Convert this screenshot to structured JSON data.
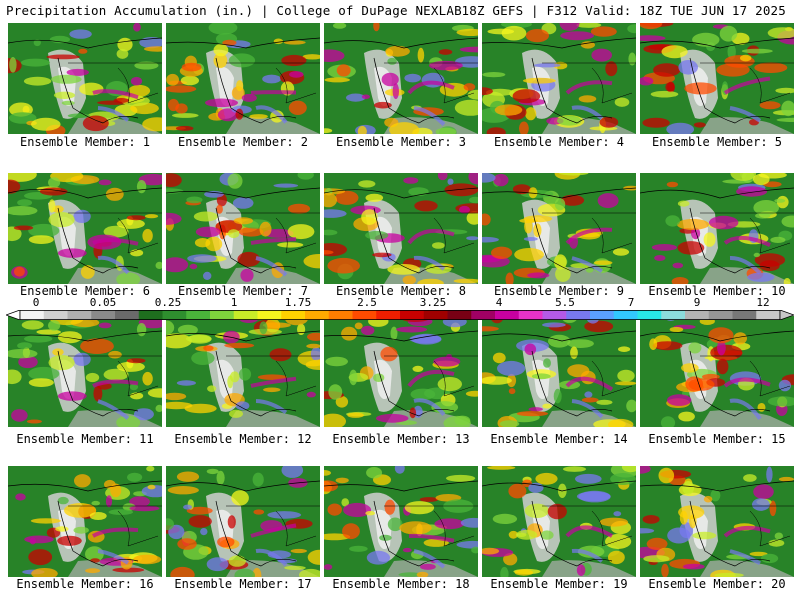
{
  "header": {
    "left": "Precipitation Accumulation (in.) | College of DuPage NEXLAB",
    "right": "18Z GEFS | F312 Valid: 18Z TUE JUN 17 2025"
  },
  "members": [
    "Ensemble Member: 1",
    "Ensemble Member: 2",
    "Ensemble Member: 3",
    "Ensemble Member: 4",
    "Ensemble Member: 5",
    "Ensemble Member: 6",
    "Ensemble Member: 7",
    "Ensemble Member: 8",
    "Ensemble Member: 9",
    "Ensemble Member: 10",
    "Ensemble Member: 11",
    "Ensemble Member: 12",
    "Ensemble Member: 13",
    "Ensemble Member: 14",
    "Ensemble Member: 15",
    "Ensemble Member: 16",
    "Ensemble Member: 17",
    "Ensemble Member: 18",
    "Ensemble Member: 19",
    "Ensemble Member: 20"
  ],
  "colorbar": {
    "labels": [
      "0",
      "0.05",
      "0.25",
      "1",
      "1.75",
      "2.5",
      "3.25",
      "4",
      "5.5",
      "7",
      "9",
      "12"
    ],
    "colors": [
      "#f2f2f2",
      "#d0d0d0",
      "#b0b0b0",
      "#8a8a8a",
      "#6a6a6a",
      "#1e6e1e",
      "#2e8f2e",
      "#4ab43a",
      "#7ed43c",
      "#c8ec28",
      "#f5f51e",
      "#ffd200",
      "#ffaa00",
      "#ff7d00",
      "#ff4b00",
      "#f01e00",
      "#c80000",
      "#a00000",
      "#780014",
      "#a00064",
      "#c800a0",
      "#e632c8",
      "#b45ae6",
      "#7878f0",
      "#5aa0ff",
      "#32c8ff",
      "#28e6e6",
      "#8cdcdc",
      "#b4b4b4",
      "#969696",
      "#787878",
      "#c8c8c8"
    ]
  }
}
